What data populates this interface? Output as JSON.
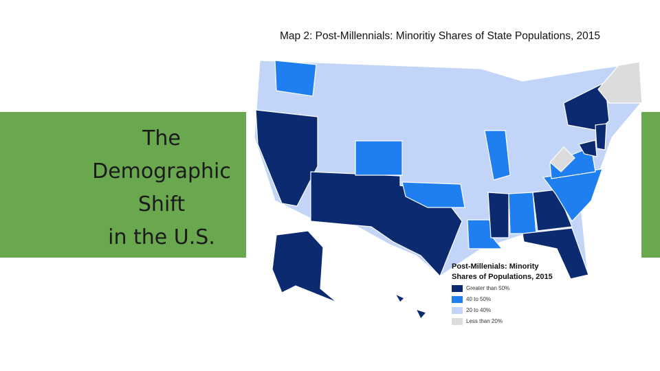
{
  "slide": {
    "title_lines": [
      "The",
      "Demographic",
      "Shift",
      "in the U.S."
    ]
  },
  "map": {
    "title": "Map 2: Post-Millennials: Minoritiy Shares of State Populations, 2015",
    "legend": {
      "title_lines": [
        "Post-Millenials: Minority",
        "Shares of Populations, 2015"
      ],
      "items": [
        {
          "label": "Greater than 50%",
          "color": "#0b2a6f"
        },
        {
          "label": "40 to 50%",
          "color": "#1f7ff0"
        },
        {
          "label": "20 to 40%",
          "color": "#c2d4f7"
        },
        {
          "label": "Less than 20%",
          "color": "#dcdcdc"
        }
      ]
    }
  }
}
